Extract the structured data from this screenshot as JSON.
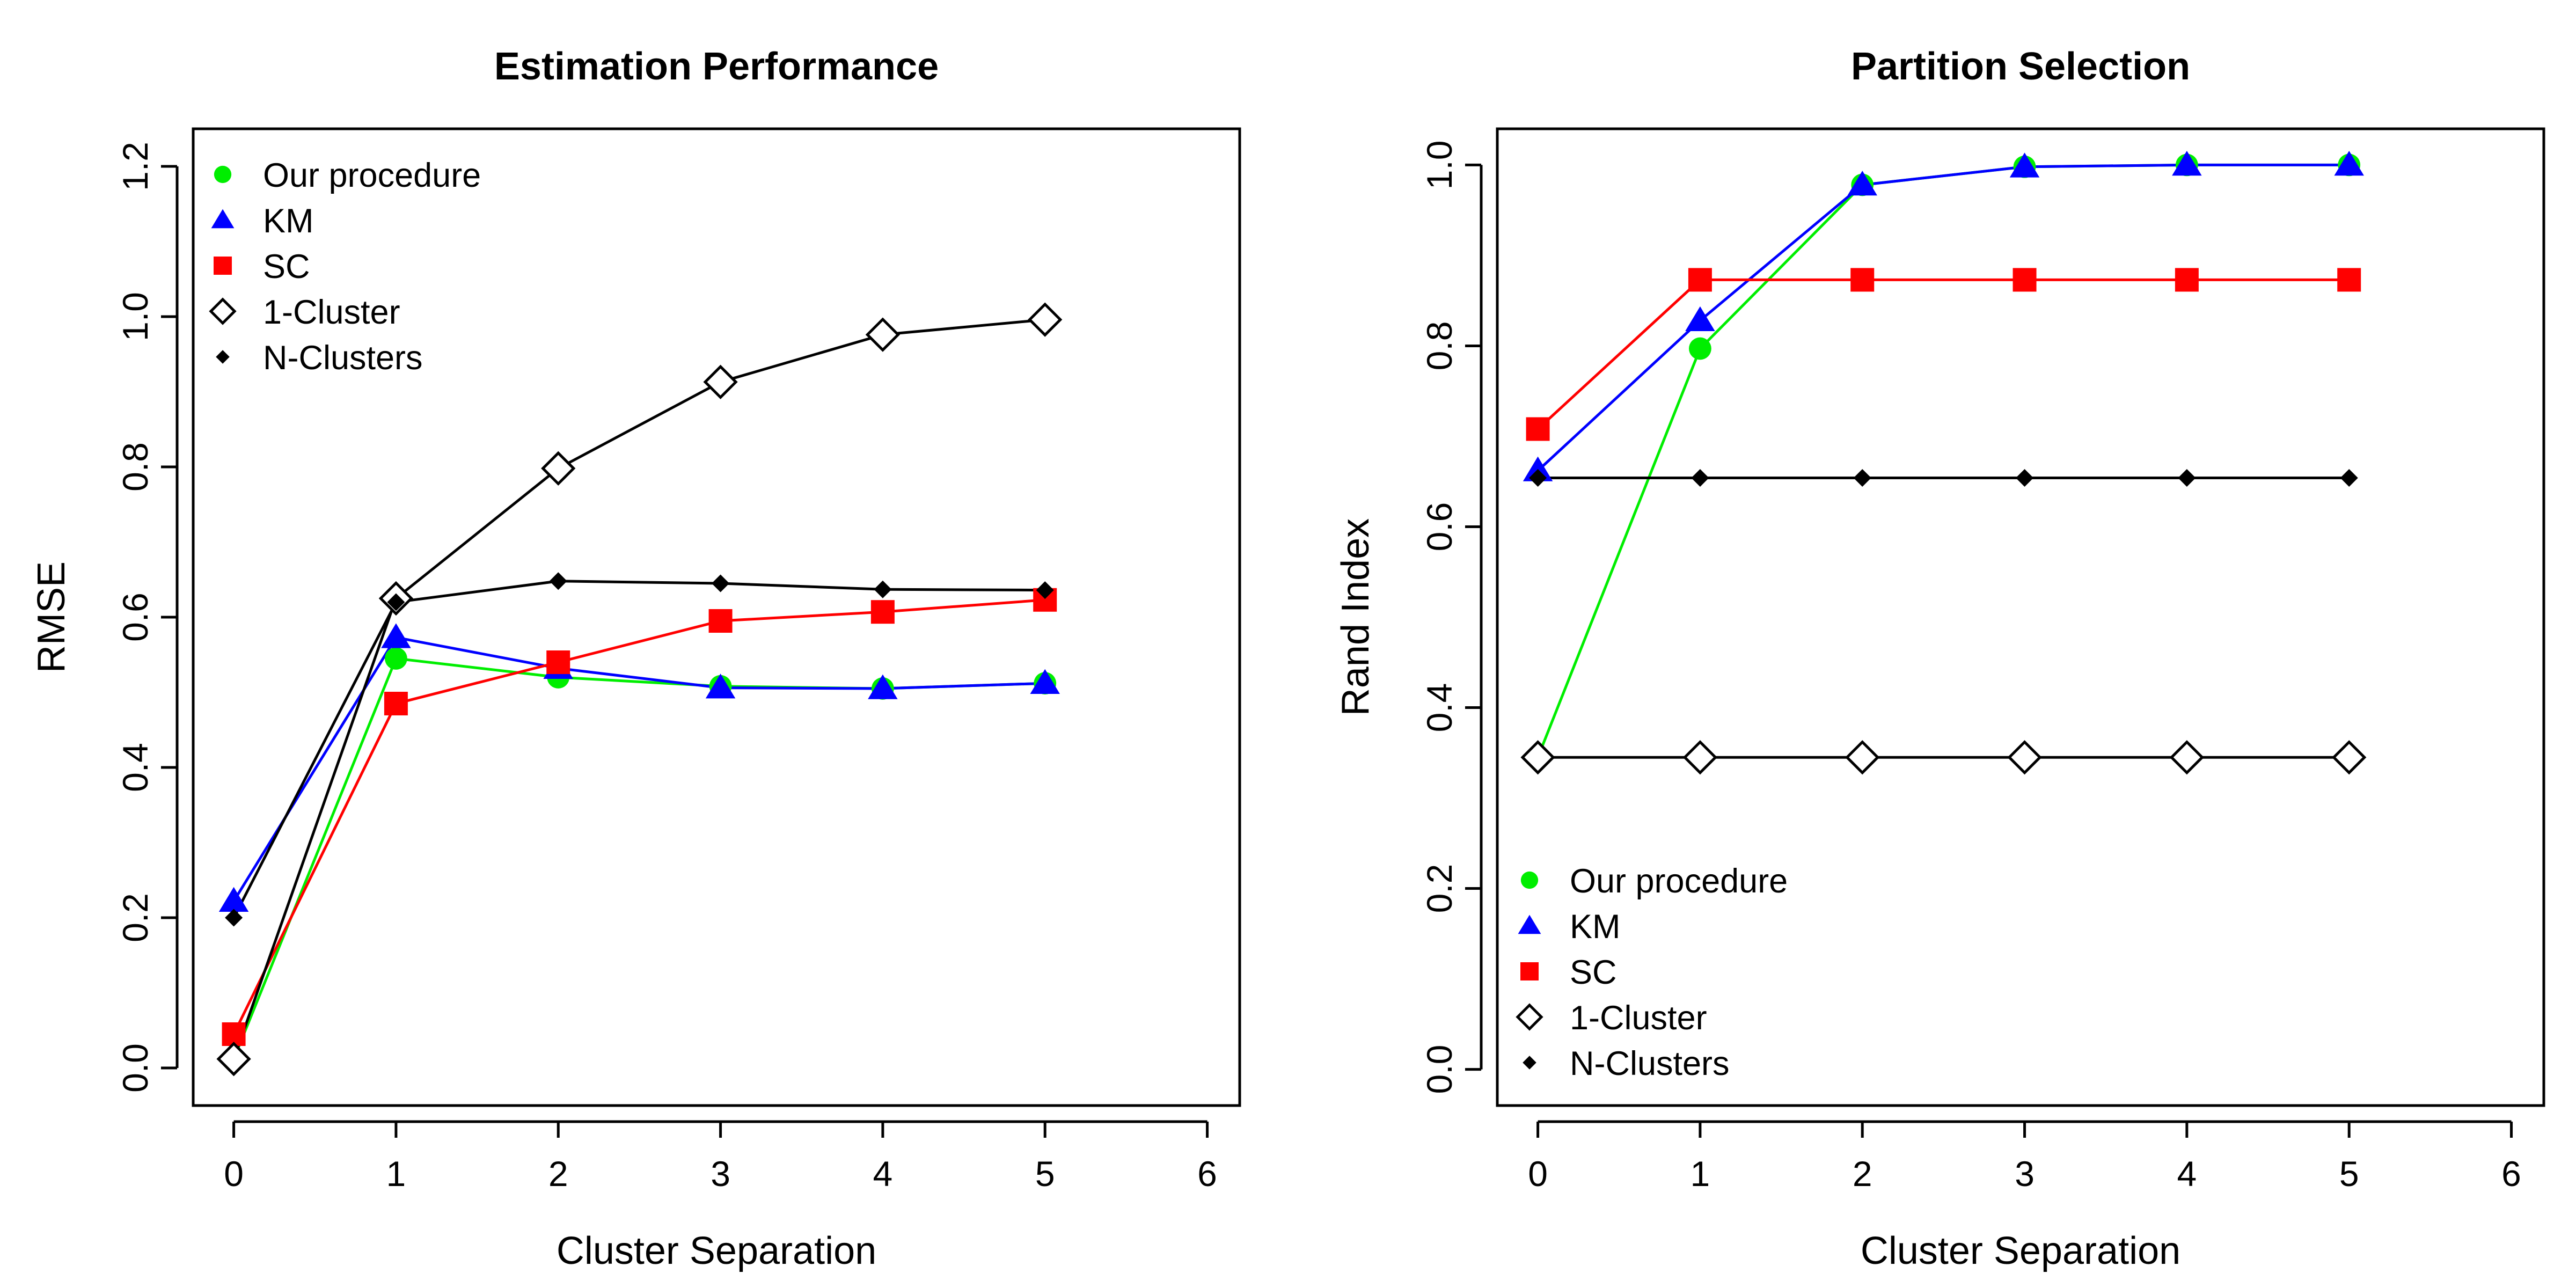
{
  "chart_data": [
    {
      "type": "line",
      "title": "Estimation Performance",
      "xlabel": "Cluster Separation",
      "ylabel": "RMSE",
      "xlim": [
        -0.25,
        6.2
      ],
      "ylim": [
        -0.05,
        1.25
      ],
      "xticks": [
        "0",
        "1",
        "2",
        "3",
        "4",
        "5",
        "6"
      ],
      "yticks": [
        "0.0",
        "0.2",
        "0.4",
        "0.6",
        "0.8",
        "1.0",
        "1.2"
      ],
      "legend_position": "top-left",
      "x": [
        0,
        1,
        2,
        3,
        4,
        5
      ],
      "series": [
        {
          "name": "Our procedure",
          "color": "#00ee00",
          "marker": "circle",
          "values": [
            0.012,
            0.545,
            0.52,
            0.508,
            0.505,
            0.512
          ]
        },
        {
          "name": "KM",
          "color": "#0000ff",
          "marker": "triangle",
          "values": [
            0.222,
            0.573,
            0.532,
            0.506,
            0.505,
            0.512
          ]
        },
        {
          "name": "SC",
          "color": "#ff0000",
          "marker": "square",
          "values": [
            0.045,
            0.485,
            0.54,
            0.595,
            0.607,
            0.623
          ]
        },
        {
          "name": "1-Cluster",
          "color": "#000000",
          "marker": "diamond-open",
          "values": [
            0.012,
            0.625,
            0.798,
            0.913,
            0.976,
            0.996
          ]
        },
        {
          "name": "N-Clusters",
          "color": "#000000",
          "marker": "diamond",
          "values": [
            0.2,
            0.62,
            0.648,
            0.645,
            0.637,
            0.636
          ]
        }
      ]
    },
    {
      "type": "line",
      "title": "Partition Selection",
      "xlabel": "Cluster Separation",
      "ylabel": "Rand Index",
      "xlim": [
        -0.25,
        6.2
      ],
      "ylim": [
        -0.04,
        1.04
      ],
      "xticks": [
        "0",
        "1",
        "2",
        "3",
        "4",
        "5",
        "6"
      ],
      "yticks": [
        "0.0",
        "0.2",
        "0.4",
        "0.6",
        "0.8",
        "1.0"
      ],
      "legend_position": "bottom-left",
      "x": [
        0,
        1,
        2,
        3,
        4,
        5
      ],
      "series": [
        {
          "name": "Our procedure",
          "color": "#00ee00",
          "marker": "circle",
          "values": [
            0.345,
            0.797,
            0.978,
            0.998,
            1.0,
            1.0
          ]
        },
        {
          "name": "KM",
          "color": "#0000ff",
          "marker": "triangle",
          "values": [
            0.662,
            0.828,
            0.978,
            0.998,
            1.0,
            1.0
          ]
        },
        {
          "name": "SC",
          "color": "#ff0000",
          "marker": "square",
          "values": [
            0.708,
            0.873,
            0.873,
            0.873,
            0.873,
            0.873
          ]
        },
        {
          "name": "1-Cluster",
          "color": "#000000",
          "marker": "diamond-open",
          "values": [
            0.345,
            0.345,
            0.345,
            0.345,
            0.345,
            0.345
          ]
        },
        {
          "name": "N-Clusters",
          "color": "#000000",
          "marker": "diamond",
          "values": [
            0.654,
            0.654,
            0.654,
            0.654,
            0.654,
            0.654
          ]
        }
      ]
    }
  ]
}
